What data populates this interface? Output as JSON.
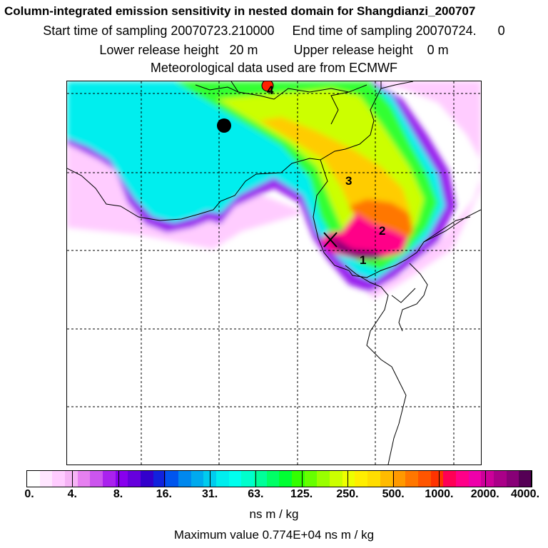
{
  "header": {
    "line1": "Column-integrated emission sensitivity in nested domain for Shangdianzi_200707",
    "line2": "Start time of sampling 20070723.210000     End time of sampling 20070724.      0",
    "line3": "Lower release height   20 m          Upper release height    0 m",
    "line4": "Meteorological data used are from ECMWF"
  },
  "map": {
    "cluster_labels": [
      "1",
      "2",
      "3",
      "4"
    ]
  },
  "legend": {
    "tick_labels": [
      "0.",
      "4.",
      "8.",
      "16.",
      "31.",
      "63.",
      "125.",
      "250.",
      "500.",
      "1000.",
      "2000.",
      "4000."
    ],
    "colors": [
      "#ffffff",
      "#ffe6ff",
      "#ffccff",
      "#f5b3f5",
      "#e680f0",
      "#cc55ee",
      "#aa22ee",
      "#8800ee",
      "#6600dd",
      "#3300cc",
      "#1122dd",
      "#0055ee",
      "#0088ee",
      "#00aaee",
      "#00ccee",
      "#00eeee",
      "#00ffee",
      "#00ffcc",
      "#00ff99",
      "#00ff66",
      "#00ff33",
      "#33ff00",
      "#66ff00",
      "#99ff00",
      "#ccff00",
      "#eeff00",
      "#ffee00",
      "#ffdd00",
      "#ffbb00",
      "#ff9900",
      "#ff7700",
      "#ff5500",
      "#ff3300",
      "#ff0055",
      "#ff0088",
      "#ee00aa",
      "#cc0099",
      "#aa0088",
      "#880077",
      "#550055"
    ],
    "unit": "ns m / kg",
    "max_text": "Maximum value  0.774E+04 ns m / kg"
  }
}
